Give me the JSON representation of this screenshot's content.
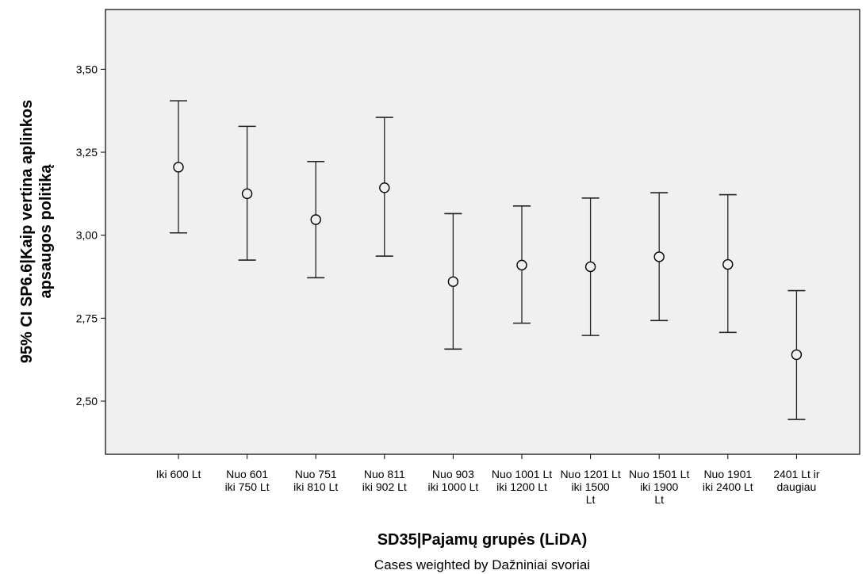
{
  "chart_data": {
    "type": "errorbar",
    "xlabel": "SD35|Pajamų grupės (LiDA)",
    "ylabel_lines": [
      "95% CI SP6.6|Kaip vertina aplinkos",
      "apsaugos politiką"
    ],
    "footnote": "Cases weighted by Dažniniai svoriai",
    "ylim": [
      2.34,
      3.68
    ],
    "yticks": [
      {
        "value": 2.5,
        "label": "2,50"
      },
      {
        "value": 2.75,
        "label": "2,75"
      },
      {
        "value": 3.0,
        "label": "3,00"
      },
      {
        "value": 3.25,
        "label": "3,25"
      },
      {
        "value": 3.5,
        "label": "3,50"
      }
    ],
    "categories": [
      {
        "lines": [
          "Iki 600 Lt"
        ]
      },
      {
        "lines": [
          "Nuo 601",
          "iki 750 Lt"
        ]
      },
      {
        "lines": [
          "Nuo 751",
          "iki 810 Lt"
        ]
      },
      {
        "lines": [
          "Nuo 811",
          "iki 902 Lt"
        ]
      },
      {
        "lines": [
          "Nuo 903",
          "iki 1000 Lt"
        ]
      },
      {
        "lines": [
          "Nuo 1001 Lt",
          "iki 1200 Lt"
        ]
      },
      {
        "lines": [
          "Nuo 1201 Lt",
          "iki 1500",
          "Lt"
        ]
      },
      {
        "lines": [
          "Nuo 1501 Lt",
          "iki 1900",
          "Lt"
        ]
      },
      {
        "lines": [
          "Nuo 1901",
          "iki 2400 Lt"
        ]
      },
      {
        "lines": [
          "2401 Lt ir",
          "daugiau"
        ]
      }
    ],
    "mean": [
      3.205,
      3.125,
      3.047,
      3.143,
      2.86,
      2.91,
      2.905,
      2.935,
      2.912,
      2.64
    ],
    "lower": [
      3.007,
      2.925,
      2.872,
      2.937,
      2.657,
      2.735,
      2.698,
      2.743,
      2.707,
      2.445
    ],
    "upper": [
      3.405,
      3.328,
      3.222,
      3.355,
      3.065,
      3.088,
      3.112,
      3.128,
      3.122,
      2.833
    ],
    "grid": false,
    "colors": {
      "plot_background": "#f0f0f0",
      "marker": "#000000",
      "errorbar": "#222222"
    }
  }
}
